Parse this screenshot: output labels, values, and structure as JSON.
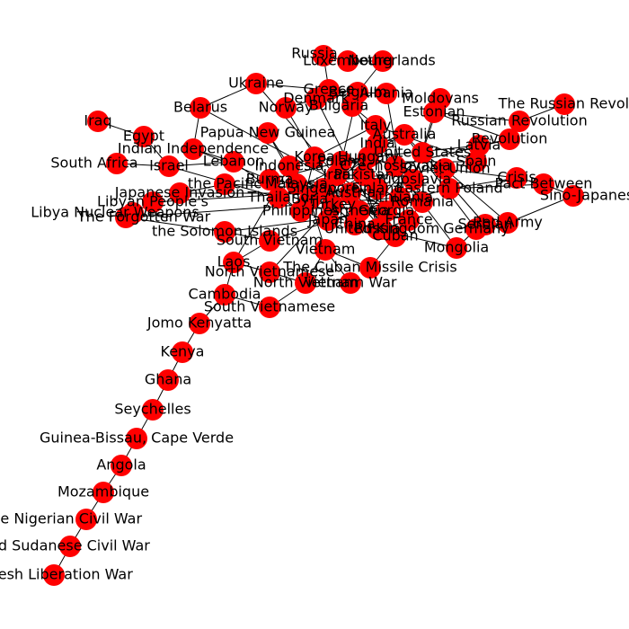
{
  "colors": {
    "node": "#ff0000",
    "edge": "#000000",
    "label": "#000000",
    "background": "#ffffff"
  },
  "nodes": [
    {
      "id": "russia",
      "label": "Russia"
    },
    {
      "id": "luxembourg",
      "label": "Luxembourg"
    },
    {
      "id": "netherlands",
      "label": "Netherlands"
    },
    {
      "id": "ukraine",
      "label": "Ukraine"
    },
    {
      "id": "greece",
      "label": "Greece"
    },
    {
      "id": "belgium",
      "label": "Belgium"
    },
    {
      "id": "albania",
      "label": "Albania"
    },
    {
      "id": "denmark",
      "label": "Denmark"
    },
    {
      "id": "norway",
      "label": "Norway"
    },
    {
      "id": "bulgaria",
      "label": "Bulgaria"
    },
    {
      "id": "moldovans",
      "label": "Moldovans"
    },
    {
      "id": "estonian",
      "label": "Estonian"
    },
    {
      "id": "russian-revolution-of",
      "label": "The Russian Revolution of"
    },
    {
      "id": "russian-revolution",
      "label": "Russian Revolution"
    },
    {
      "id": "revolution",
      "label": "Revolution"
    },
    {
      "id": "latvia",
      "label": "Latvia"
    },
    {
      "id": "spain",
      "label": "Spain"
    },
    {
      "id": "italy",
      "label": "Italy"
    },
    {
      "id": "belarus",
      "label": "Belarus"
    },
    {
      "id": "iraq",
      "label": "Iraq"
    },
    {
      "id": "egypt",
      "label": "Egypt"
    },
    {
      "id": "indian-independence",
      "label": "Indian Independence"
    },
    {
      "id": "lebanon",
      "label": "Lebanon"
    },
    {
      "id": "israel",
      "label": "Israel"
    },
    {
      "id": "south-africa",
      "label": "South Africa"
    },
    {
      "id": "papua-new-guinea",
      "label": "Papua New Guinea"
    },
    {
      "id": "the-pacific",
      "label": "the Pacific"
    },
    {
      "id": "japanese-invasion",
      "label": "Japanese Invasion"
    },
    {
      "id": "libya-peoples",
      "label": "Libyan People's"
    },
    {
      "id": "libya-nuclear",
      "label": "Libya Nuclear Weapons"
    },
    {
      "id": "the-forgotten",
      "label": "The Forgotten War"
    },
    {
      "id": "solomon-islands",
      "label": "the Solomon Islands"
    },
    {
      "id": "south-vietnam",
      "label": "South Vietnam"
    },
    {
      "id": "laos",
      "label": "Laos"
    },
    {
      "id": "north-vietnamese",
      "label": "North Vietnamese"
    },
    {
      "id": "north-vietnam",
      "label": "North Vietnam"
    },
    {
      "id": "vietnam",
      "label": "Vietnam"
    },
    {
      "id": "vietnam-war",
      "label": "Vietnam War"
    },
    {
      "id": "cambodia",
      "label": "Cambodia"
    },
    {
      "id": "south-vietnamese",
      "label": "South Vietnamese"
    },
    {
      "id": "cuban-missile-crisis",
      "label": "The Cuban Missile Crisis"
    },
    {
      "id": "cuban",
      "label": "Cuban"
    },
    {
      "id": "russia2",
      "label": "Russia"
    },
    {
      "id": "mongolia",
      "label": "Mongolia"
    },
    {
      "id": "germany",
      "label": "Germany"
    },
    {
      "id": "serbian",
      "label": "Serbian"
    },
    {
      "id": "red-army",
      "label": "Red Army"
    },
    {
      "id": "sino-japanese",
      "label": "Sino-Japanese"
    },
    {
      "id": "pact-between",
      "label": "Pact Between"
    },
    {
      "id": "crisis",
      "label": "Crisis"
    },
    {
      "id": "jomo-kenyatta",
      "label": "Jomo Kenyatta"
    },
    {
      "id": "kenya",
      "label": "Kenya"
    },
    {
      "id": "ghana",
      "label": "Ghana"
    },
    {
      "id": "seychelles",
      "label": "Seychelles"
    },
    {
      "id": "guinea-bissau",
      "label": "Guinea-Bissau, Cape Verde"
    },
    {
      "id": "angola",
      "label": "Angola"
    },
    {
      "id": "mozambique",
      "label": "Mozambique"
    },
    {
      "id": "nigerian-civil-war",
      "label": "the Nigerian Civil War"
    },
    {
      "id": "second-sudanese",
      "label": "Second Sudanese Civil War"
    },
    {
      "id": "bangladesh",
      "label": "Bangladesh Liberation War"
    },
    {
      "id": "hub-1",
      "label": "Indonesia"
    },
    {
      "id": "hub-2",
      "label": "Korea"
    },
    {
      "id": "hub-3",
      "label": "Poland"
    },
    {
      "id": "hub-4",
      "label": "Hungary"
    },
    {
      "id": "hub-5",
      "label": "Czechoslovakia"
    },
    {
      "id": "hub-6",
      "label": "Yugoslavia"
    },
    {
      "id": "hub-7",
      "label": "Romania"
    },
    {
      "id": "hub-8",
      "label": "France"
    },
    {
      "id": "hub-9",
      "label": "United Kingdom"
    },
    {
      "id": "hub-10",
      "label": "China"
    },
    {
      "id": "hub-11",
      "label": "Japan"
    },
    {
      "id": "hub-12",
      "label": "Philippines"
    },
    {
      "id": "hub-13",
      "label": "Thailand"
    },
    {
      "id": "hub-14",
      "label": "Burma"
    },
    {
      "id": "hub-15",
      "label": "Malaysia"
    },
    {
      "id": "hub-16",
      "label": "Singapore"
    },
    {
      "id": "hub-17",
      "label": "Austria"
    },
    {
      "id": "hub-18",
      "label": "Finland"
    },
    {
      "id": "hub-19",
      "label": "Lithuania"
    },
    {
      "id": "hub-20",
      "label": "Georgia"
    },
    {
      "id": "hub-21",
      "label": "Armenia"
    },
    {
      "id": "hub-22",
      "label": "Turkey"
    },
    {
      "id": "hub-23",
      "label": "Syria"
    },
    {
      "id": "hub-24",
      "label": "Iran"
    },
    {
      "id": "hub-25",
      "label": "Pakistan"
    },
    {
      "id": "hub-26",
      "label": "India"
    },
    {
      "id": "hub-27",
      "label": "Australia"
    },
    {
      "id": "hub-28",
      "label": "United States"
    },
    {
      "id": "hub-29",
      "label": "Soviet Union"
    },
    {
      "id": "hub-30",
      "label": "Eastern Poland"
    }
  ],
  "edges": [
    [
      "russia",
      "luxembourg"
    ],
    [
      "luxembourg",
      "netherlands"
    ],
    [
      "russia",
      "greece"
    ],
    [
      "ukraine",
      "greece"
    ],
    [
      "ukraine",
      "belarus"
    ],
    [
      "greece",
      "belgium"
    ],
    [
      "belgium",
      "albania"
    ],
    [
      "belgium",
      "denmark"
    ],
    [
      "denmark",
      "norway"
    ],
    [
      "belgium",
      "bulgaria"
    ],
    [
      "netherlands",
      "belgium"
    ],
    [
      "moldovans",
      "estonian"
    ],
    [
      "estonian",
      "russian-revolution"
    ],
    [
      "russian-revolution",
      "russian-revolution-of"
    ],
    [
      "estonian",
      "revolution"
    ],
    [
      "revolution",
      "latvia"
    ],
    [
      "latvia",
      "spain"
    ],
    [
      "spain",
      "italy"
    ],
    [
      "italy",
      "bulgaria"
    ],
    [
      "belarus",
      "indian-independence"
    ],
    [
      "iraq",
      "egypt"
    ],
    [
      "egypt",
      "israel"
    ],
    [
      "israel",
      "south-africa"
    ],
    [
      "israel",
      "lebanon"
    ],
    [
      "indian-independence",
      "lebanon"
    ],
    [
      "papua-new-guinea",
      "hub-1"
    ],
    [
      "the-pacific",
      "japanese-invasion"
    ],
    [
      "libya-peoples",
      "libya-nuclear"
    ],
    [
      "libya-peoples",
      "the-forgotten"
    ],
    [
      "the-forgotten",
      "solomon-islands"
    ],
    [
      "solomon-islands",
      "south-vietnam"
    ],
    [
      "south-vietnam",
      "laos"
    ],
    [
      "laos",
      "north-vietnamese"
    ],
    [
      "north-vietnamese",
      "north-vietnam"
    ],
    [
      "north-vietnam",
      "vietnam"
    ],
    [
      "vietnam",
      "vietnam-war"
    ],
    [
      "laos",
      "cambodia"
    ],
    [
      "cambodia",
      "south-vietnamese"
    ],
    [
      "south-vietnamese",
      "north-vietnam"
    ],
    [
      "vietnam",
      "cuban-missile-crisis"
    ],
    [
      "cuban-missile-crisis",
      "cuban"
    ],
    [
      "cuban",
      "russia2"
    ],
    [
      "russia2",
      "mongolia"
    ],
    [
      "mongolia",
      "germany"
    ],
    [
      "germany",
      "serbian"
    ],
    [
      "serbian",
      "red-army"
    ],
    [
      "red-army",
      "sino-japanese"
    ],
    [
      "sino-japanese",
      "pact-between"
    ],
    [
      "pact-between",
      "crisis"
    ],
    [
      "crisis",
      "hub-29"
    ],
    [
      "cambodia",
      "jomo-kenyatta"
    ],
    [
      "jomo-kenyatta",
      "kenya"
    ],
    [
      "kenya",
      "ghana"
    ],
    [
      "ghana",
      "seychelles"
    ],
    [
      "seychelles",
      "guinea-bissau"
    ],
    [
      "guinea-bissau",
      "angola"
    ],
    [
      "angola",
      "mozambique"
    ],
    [
      "mozambique",
      "nigerian-civil-war"
    ],
    [
      "nigerian-civil-war",
      "second-sudanese"
    ],
    [
      "second-sudanese",
      "bangladesh"
    ],
    [
      "hub-1",
      "hub-2"
    ],
    [
      "hub-2",
      "hub-3"
    ],
    [
      "hub-3",
      "hub-4"
    ],
    [
      "hub-4",
      "hub-5"
    ],
    [
      "hub-5",
      "hub-6"
    ],
    [
      "hub-6",
      "hub-7"
    ],
    [
      "hub-7",
      "hub-8"
    ],
    [
      "hub-8",
      "hub-9"
    ],
    [
      "hub-9",
      "hub-10"
    ],
    [
      "hub-10",
      "hub-11"
    ],
    [
      "hub-11",
      "hub-12"
    ],
    [
      "hub-12",
      "hub-13"
    ],
    [
      "hub-13",
      "hub-14"
    ],
    [
      "hub-14",
      "hub-15"
    ],
    [
      "hub-15",
      "hub-16"
    ],
    [
      "hub-16",
      "hub-17"
    ],
    [
      "hub-17",
      "hub-18"
    ],
    [
      "hub-18",
      "hub-19"
    ],
    [
      "hub-19",
      "hub-20"
    ],
    [
      "hub-20",
      "hub-21"
    ],
    [
      "hub-21",
      "hub-22"
    ],
    [
      "hub-22",
      "hub-23"
    ],
    [
      "hub-23",
      "hub-24"
    ],
    [
      "hub-24",
      "hub-25"
    ],
    [
      "hub-25",
      "hub-26"
    ],
    [
      "hub-26",
      "hub-27"
    ],
    [
      "hub-27",
      "hub-28"
    ],
    [
      "hub-28",
      "hub-29"
    ],
    [
      "hub-29",
      "hub-30"
    ],
    [
      "hub-1",
      "hub-10"
    ],
    [
      "hub-2",
      "hub-12"
    ],
    [
      "hub-3",
      "hub-14"
    ],
    [
      "hub-4",
      "hub-16"
    ],
    [
      "hub-5",
      "hub-18"
    ],
    [
      "hub-6",
      "hub-20"
    ],
    [
      "hub-7",
      "hub-22"
    ],
    [
      "hub-8",
      "hub-24"
    ],
    [
      "hub-9",
      "hub-26"
    ],
    [
      "hub-10",
      "hub-28"
    ],
    [
      "hub-11",
      "hub-30"
    ],
    [
      "hub-12",
      "hub-25"
    ],
    [
      "hub-13",
      "hub-27"
    ],
    [
      "hub-15",
      "hub-29"
    ],
    [
      "hub-17",
      "hub-23"
    ],
    [
      "hub-19",
      "hub-21"
    ],
    [
      "hub-2",
      "italy"
    ],
    [
      "hub-3",
      "spain"
    ],
    [
      "hub-4",
      "latvia"
    ],
    [
      "hub-5",
      "revolution"
    ],
    [
      "hub-6",
      "estonian"
    ],
    [
      "hub-7",
      "bulgaria"
    ],
    [
      "hub-8",
      "albania"
    ],
    [
      "hub-9",
      "denmark"
    ],
    [
      "hub-10",
      "norway"
    ],
    [
      "hub-11",
      "belgium"
    ],
    [
      "hub-12",
      "lebanon"
    ],
    [
      "hub-13",
      "israel"
    ],
    [
      "hub-14",
      "indian-independence"
    ],
    [
      "hub-15",
      "papua-new-guinea"
    ],
    [
      "hub-16",
      "the-pacific"
    ],
    [
      "hub-17",
      "japanese-invasion"
    ],
    [
      "hub-18",
      "libya-peoples"
    ],
    [
      "hub-19",
      "the-forgotten"
    ],
    [
      "hub-20",
      "solomon-islands"
    ],
    [
      "hub-21",
      "south-vietnam"
    ],
    [
      "hub-22",
      "north-vietnamese"
    ],
    [
      "hub-23",
      "vietnam"
    ],
    [
      "hub-24",
      "cuban"
    ],
    [
      "hub-25",
      "russia2"
    ],
    [
      "hub-26",
      "mongolia"
    ],
    [
      "hub-27",
      "germany"
    ],
    [
      "hub-28",
      "serbian"
    ],
    [
      "hub-29",
      "red-army"
    ],
    [
      "hub-30",
      "pact-between"
    ],
    [
      "hub-30",
      "crisis"
    ],
    [
      "hub-1",
      "laos"
    ],
    [
      "hub-6",
      "moldovans"
    ],
    [
      "hub-8",
      "belarus"
    ],
    [
      "hub-9",
      "ukraine"
    ]
  ]
}
